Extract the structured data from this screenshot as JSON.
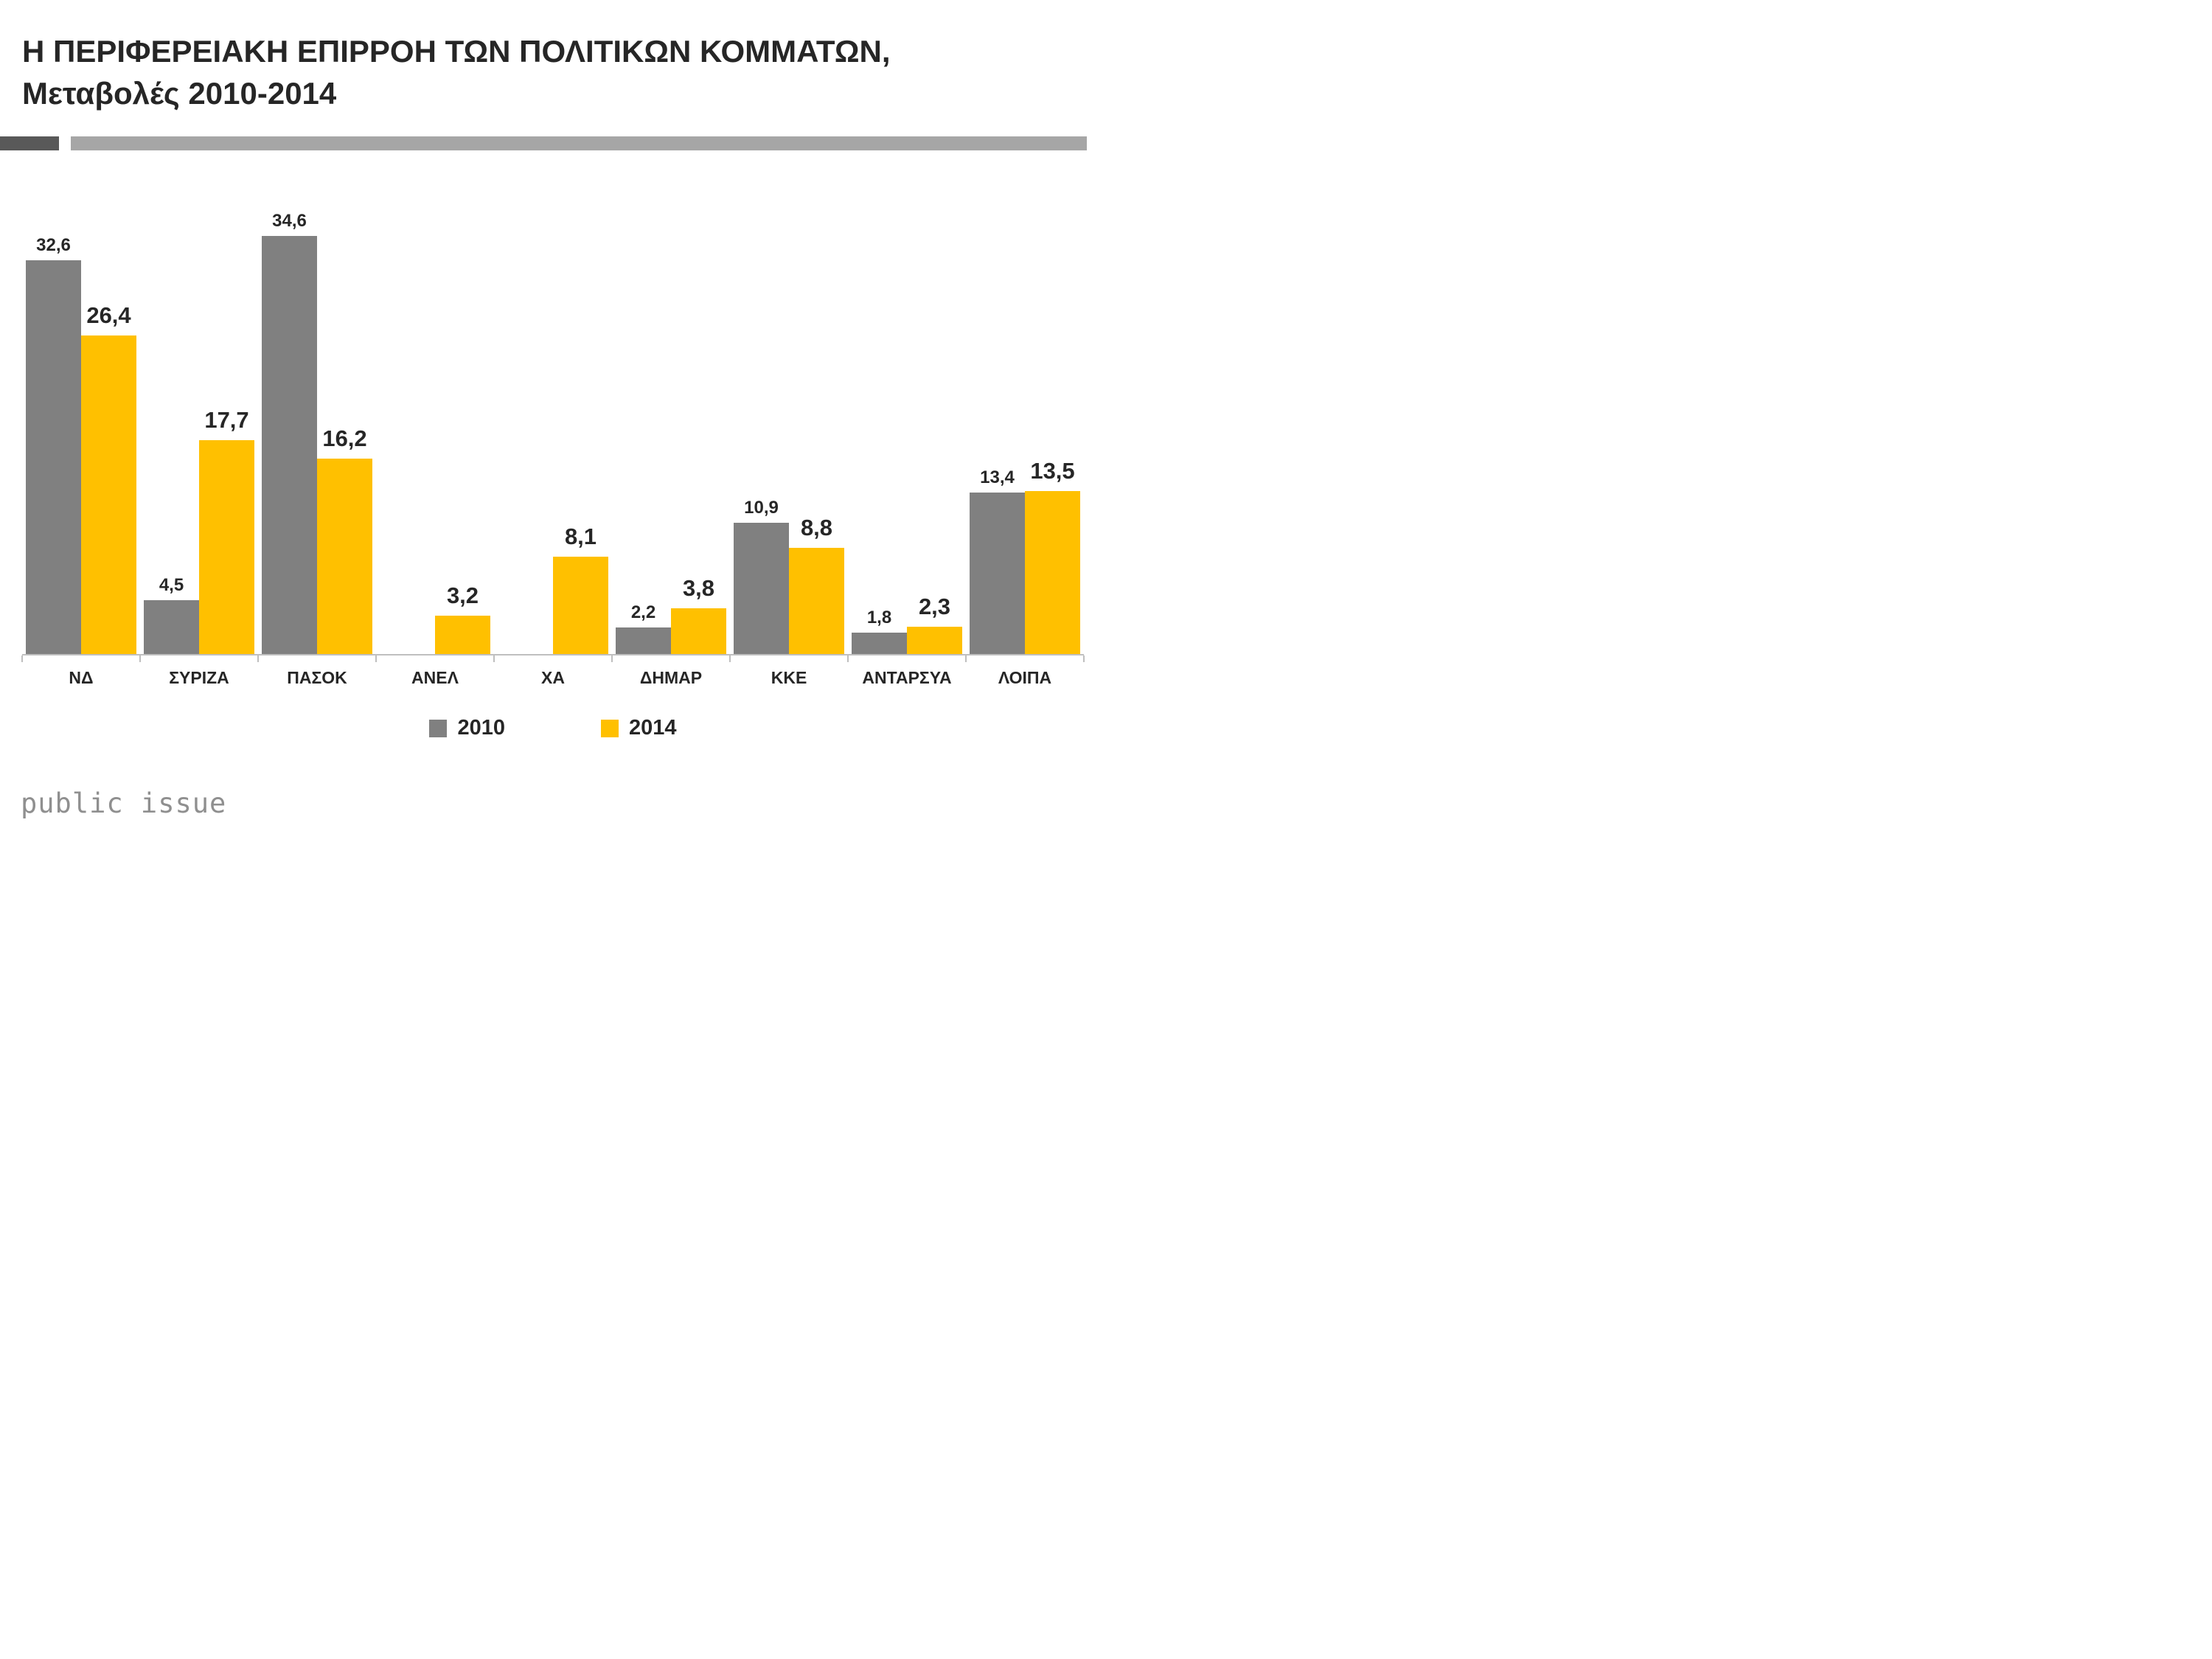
{
  "header": {
    "title_line1": "Η ΠΕΡΙΦΕΡΕΙΑΚΗ ΕΠΙΡΡΟΗ ΤΩΝ ΠΟΛΙΤΙΚΩΝ ΚΟΜΜΑΤΩΝ,",
    "title_line2": "Μεταβολές 2010-2014"
  },
  "chart_data": {
    "type": "bar",
    "title": "Η ΠΕΡΙΦΕΡΕΙΑΚΗ ΕΠΙΡΡΟΗ ΤΩΝ ΠΟΛΙΤΙΚΩΝ ΚΟΜΜΑΤΩΝ, Μεταβολές 2010-2014",
    "categories": [
      "ΝΔ",
      "ΣΥΡΙΖΑ",
      "ΠΑΣΟΚ",
      "ΑΝΕΛ",
      "ΧΑ",
      "ΔΗΜΑΡ",
      "ΚΚΕ",
      "ΑΝΤΑΡΣΥΑ",
      "ΛΟΙΠΑ"
    ],
    "series": [
      {
        "name": "2010",
        "color": "#808080",
        "values": [
          32.6,
          4.5,
          34.6,
          null,
          null,
          2.2,
          10.9,
          1.8,
          13.4
        ]
      },
      {
        "name": "2014",
        "color": "#FFC000",
        "values": [
          26.4,
          17.7,
          16.2,
          3.2,
          8.1,
          3.8,
          8.8,
          2.3,
          13.5
        ]
      }
    ],
    "xlabel": "",
    "ylabel": "",
    "ylim": [
      0,
      36
    ],
    "decimal_separator": ",",
    "grid": false,
    "legend_position": "bottom",
    "data_labels": true
  },
  "footer": {
    "logo_text": "public issue"
  },
  "colors": {
    "series_2010": "#808080",
    "series_2014": "#FFC000",
    "divider_dark": "#595959",
    "divider_light": "#A6A6A6",
    "axis": "#BFBFBF",
    "title_text": "#262626"
  }
}
